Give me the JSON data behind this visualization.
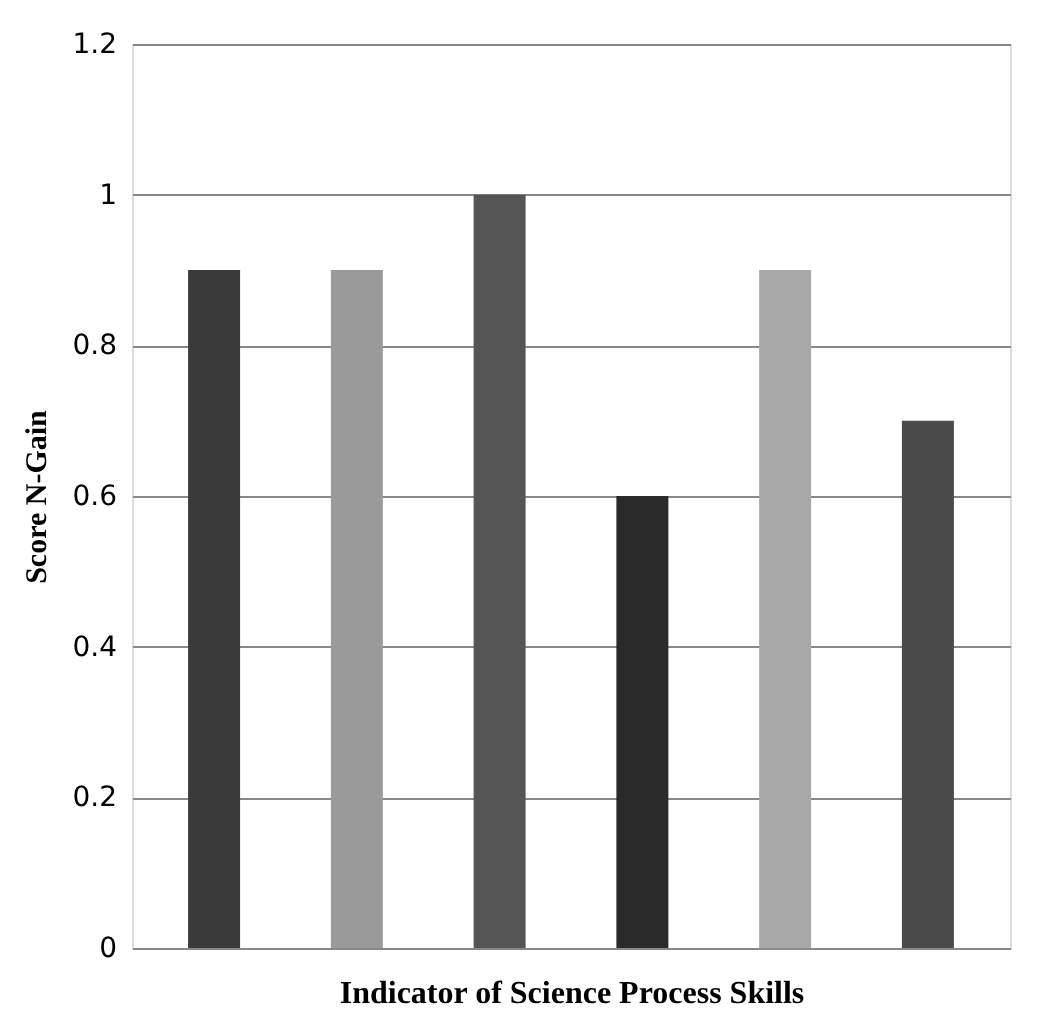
{
  "chart_data": {
    "type": "bar",
    "xlabel": "Indicator of Science Process Skills",
    "ylabel": "Score N-Gain",
    "categories": [
      null,
      null,
      null,
      null,
      null,
      null
    ],
    "values": [
      0.9,
      0.9,
      1.0,
      0.6,
      0.9,
      0.7
    ],
    "colors": [
      "#3a3a3a",
      "#9a9a9a",
      "#555555",
      "#2a2a2a",
      "#a8a8a8",
      "#4a4a4a"
    ],
    "ylim": [
      0,
      1.2
    ],
    "yticks": [
      0,
      0.2,
      0.4,
      0.6,
      0.8,
      1,
      1.2
    ],
    "grid": "y",
    "tick_labels": "y"
  }
}
